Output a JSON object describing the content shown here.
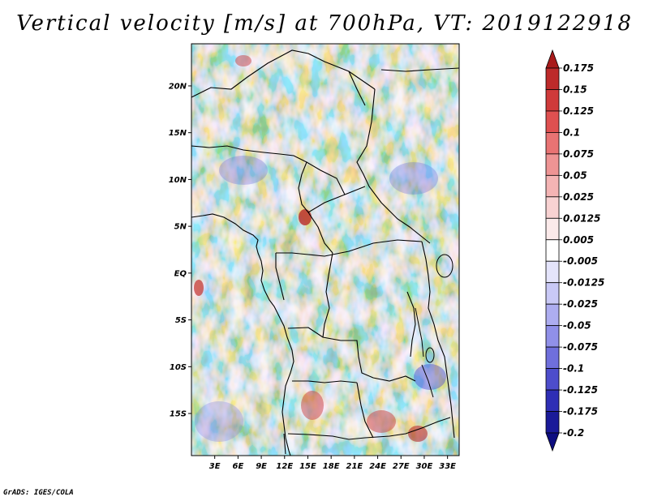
{
  "title": "Vertical velocity [m/s] at 700hPa, VT: 2019122918",
  "footer": "GrADS: IGES/COLA",
  "map": {
    "lon_range": [
      0,
      34.5
    ],
    "lat_range": [
      -19.5,
      24.5
    ],
    "lat_ticks": [
      {
        "value": 20,
        "label": "20N"
      },
      {
        "value": 15,
        "label": "15N"
      },
      {
        "value": 10,
        "label": "10N"
      },
      {
        "value": 5,
        "label": "5N"
      },
      {
        "value": 0,
        "label": "EQ"
      },
      {
        "value": -5,
        "label": "5S"
      },
      {
        "value": -10,
        "label": "10S"
      },
      {
        "value": -15,
        "label": "15S"
      }
    ],
    "lon_ticks": [
      {
        "value": 3,
        "label": "3E"
      },
      {
        "value": 6,
        "label": "6E"
      },
      {
        "value": 9,
        "label": "9E"
      },
      {
        "value": 12,
        "label": "12E"
      },
      {
        "value": 15,
        "label": "15E"
      },
      {
        "value": 18,
        "label": "18E"
      },
      {
        "value": 21,
        "label": "21E"
      },
      {
        "value": 24,
        "label": "24E"
      },
      {
        "value": 27,
        "label": "27E"
      },
      {
        "value": 30,
        "label": "30E"
      },
      {
        "value": 33,
        "label": "33E"
      }
    ]
  },
  "colorbar": {
    "labels": [
      "0.175",
      "0.15",
      "0.125",
      "0.1",
      "0.075",
      "0.05",
      "0.025",
      "0.0125",
      "0.005",
      "-0.005",
      "-0.0125",
      "-0.025",
      "-0.05",
      "-0.075",
      "-0.1",
      "-0.125",
      "-0.175",
      "-0.2"
    ],
    "colors": [
      "#a81a1a",
      "#bd2a2a",
      "#cf3a3a",
      "#df5050",
      "#e87373",
      "#ee9494",
      "#f4b4b4",
      "#f8d2d2",
      "#fbeaea",
      "#ffffff",
      "#e4e4fb",
      "#c9c9f6",
      "#adadf0",
      "#9090e8",
      "#6f6fdc",
      "#4d4dcc",
      "#2e2eb5",
      "#1a1a99",
      "#0d0d80"
    ]
  }
}
